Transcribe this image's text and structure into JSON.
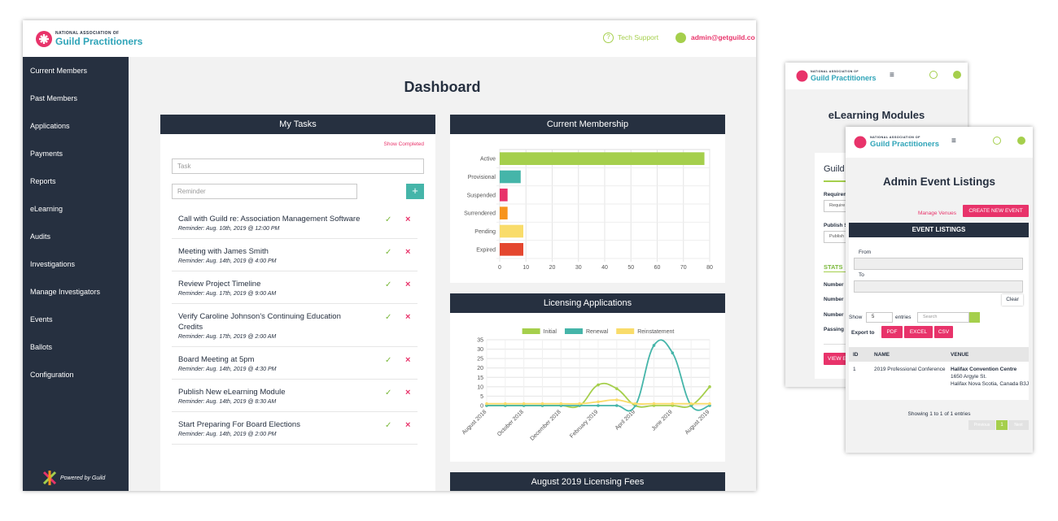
{
  "header": {
    "org_line": "NATIONAL ASSOCIATION OF",
    "org_name": "Guild Practitioners",
    "tech_support": "Tech Support",
    "user": "admin@getguild.co"
  },
  "sidebar": {
    "items": [
      "Current Members",
      "Past Members",
      "Applications",
      "Payments",
      "Reports",
      "eLearning",
      "Audits",
      "Investigations",
      "Manage Investigators",
      "Events",
      "Ballots",
      "Configuration"
    ],
    "footer": "Powered by Guild"
  },
  "page_title": "Dashboard",
  "tasks": {
    "title": "My Tasks",
    "show_completed": "Show Completed",
    "task_placeholder": "Task",
    "reminder_placeholder": "Reminder",
    "add": "+",
    "items": [
      {
        "title": "Call with Guild re: Association Management Software",
        "reminder": "Reminder: Aug. 10th, 2019 @ 12:00 PM"
      },
      {
        "title": "Meeting with James Smith",
        "reminder": "Reminder: Aug. 14th, 2019 @ 4:00 PM"
      },
      {
        "title": "Review Project Timeline",
        "reminder": "Reminder: Aug. 17th, 2019 @ 9:00 AM"
      },
      {
        "title": "Verify Caroline Johnson's Continuing Education Credits",
        "reminder": "Reminder: Aug. 17th, 2019 @ 2:00 AM"
      },
      {
        "title": "Board Meeting at 5pm",
        "reminder": "Reminder: Aug. 14th, 2019 @ 4:30 PM"
      },
      {
        "title": "Publish New eLearning Module",
        "reminder": "Reminder: Aug. 14th, 2019 @ 8:30 AM"
      },
      {
        "title": "Start Preparing For Board Elections",
        "reminder": "Reminder: Aug. 14th, 2019 @ 2:00 PM"
      }
    ]
  },
  "chart_data": [
    {
      "type": "bar",
      "orientation": "horizontal",
      "title": "Current Membership",
      "categories": [
        "Active",
        "Provisional",
        "Suspended",
        "Surrendered",
        "Pending",
        "Expired"
      ],
      "values": [
        78,
        8,
        3,
        3,
        9,
        9
      ],
      "colors": [
        "#a5cf4c",
        "#45b5a9",
        "#e8336a",
        "#f7941d",
        "#f9dc6a",
        "#e4472f"
      ],
      "xlim": [
        0,
        80
      ],
      "xticks": [
        0,
        10,
        20,
        30,
        40,
        50,
        60,
        70,
        80
      ],
      "grid": true
    },
    {
      "type": "line",
      "title": "Licensing Applications",
      "categories": [
        "August 2018",
        null,
        "October 2018",
        null,
        "December 2018",
        null,
        "February 2019",
        null,
        "April 2019",
        null,
        "June 2019",
        null,
        "August 2019"
      ],
      "series": [
        {
          "name": "Initial",
          "color": "#a5cf4c",
          "values": [
            0,
            0,
            0,
            0,
            0,
            0,
            11,
            9,
            0,
            0,
            0,
            0,
            10
          ]
        },
        {
          "name": "Renewal",
          "color": "#45b5a9",
          "values": [
            0,
            0,
            0,
            0,
            0,
            0,
            0,
            0,
            0,
            32,
            28,
            0,
            0
          ]
        },
        {
          "name": "Reinstatement",
          "color": "#f9dc6a",
          "values": [
            1,
            1,
            1,
            1,
            1,
            1,
            2,
            3,
            1,
            1,
            1,
            1,
            1
          ]
        }
      ],
      "ylim": [
        0,
        35
      ],
      "yticks": [
        0,
        5,
        10,
        15,
        20,
        25,
        30,
        35
      ],
      "grid": true,
      "legend": "top"
    }
  ],
  "fees_title": "August 2019 Licensing Fees",
  "elearning": {
    "title": "eLearning Modules",
    "card_title": "Guild",
    "labels": [
      "Requirem",
      "Require",
      "Publish S",
      "Publish",
      "STATS",
      "Number",
      "Number",
      "Number",
      "Passing F"
    ],
    "button": "VIEW E"
  },
  "events": {
    "title": "Admin Event Listings",
    "manage_venues": "Manage Venues",
    "create": "CREATE NEW EVENT",
    "listings": "EVENT LISTINGS",
    "from": "From",
    "to": "To",
    "clear": "Clear",
    "show": "Show",
    "show_count": "5",
    "entries": "entries",
    "search": "Search",
    "export": "Export to",
    "pdf": "PDF",
    "excel": "EXCEL",
    "csv": "CSV",
    "columns": [
      "ID",
      "NAME",
      "VENUE"
    ],
    "row": {
      "id": "1",
      "name": "2019 Professional Conference",
      "venue": "Halifax Convention Centre",
      "address1": "1650 Argyle St.",
      "address2": "Halifax Nova Scotia, Canada B3J"
    },
    "showing": "Showing 1 to 1 of 1 entries",
    "previous": "Previous",
    "page": "1",
    "next": "Next"
  }
}
